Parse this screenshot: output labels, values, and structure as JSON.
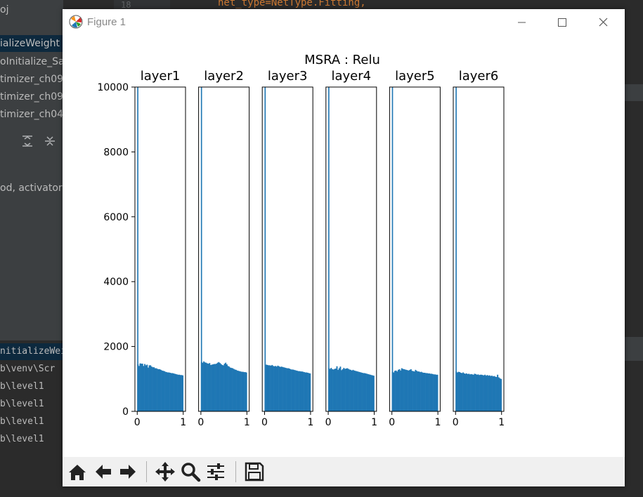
{
  "ide": {
    "code_line_number": "18",
    "code_snippet": "net_type=NetType.Fitting,",
    "left_lines": [
      {
        "text": "oj",
        "sel": false,
        "mono": false
      },
      {
        "text": "ializeWeight",
        "sel": true,
        "mono": false
      },
      {
        "text": "oInitialize_Sa",
        "sel": false,
        "mono": false
      },
      {
        "text": "timizer_ch09",
        "sel": false,
        "mono": false
      },
      {
        "text": "timizer_ch09",
        "sel": false,
        "mono": false
      },
      {
        "text": "timizer_ch04",
        "sel": false,
        "mono": false
      },
      {
        "text": "od, activator",
        "sel": false,
        "mono": false
      }
    ],
    "console_lines": [
      "nitializeWeig",
      "b\\venv\\Scr",
      "b\\level1",
      "b\\level1",
      "b\\level1",
      "b\\level1"
    ]
  },
  "window": {
    "title": "Figure 1",
    "minimize_icon": "minimize-icon",
    "maximize_icon": "maximize-icon",
    "close_icon": "close-icon"
  },
  "toolbar": {
    "buttons": [
      "home-icon",
      "back-arrow-icon",
      "forward-arrow-icon",
      "pan-icon",
      "zoom-icon",
      "configure-subplots-icon",
      "save-icon"
    ]
  },
  "chart_data": {
    "type": "bar",
    "suptitle": "MSRA : Relu",
    "ylim": [
      0,
      10000
    ],
    "yticks": [
      0,
      2000,
      4000,
      6000,
      8000,
      10000
    ],
    "xlim": [
      -0.05,
      1.05
    ],
    "xticks": [
      0,
      1
    ],
    "bar_color": "#1f77b4",
    "bins": 40,
    "subplots": [
      {
        "title": "layer1",
        "zero_bin": 10000,
        "values": [
          1450,
          1400,
          1480,
          1470,
          1470,
          1400,
          1460,
          1420,
          1440,
          1350,
          1420,
          1420,
          1380,
          1360,
          1360,
          1330,
          1330,
          1310,
          1300,
          1300,
          1280,
          1260,
          1250,
          1240,
          1220,
          1210,
          1200,
          1200,
          1190,
          1180,
          1180,
          1170,
          1160,
          1150,
          1140,
          1130,
          1130,
          1120,
          1120,
          1110
        ]
      },
      {
        "title": "layer2",
        "zero_bin": 10000,
        "values": [
          1520,
          1500,
          1540,
          1510,
          1500,
          1480,
          1470,
          1490,
          1430,
          1440,
          1450,
          1460,
          1460,
          1470,
          1500,
          1520,
          1490,
          1460,
          1430,
          1420,
          1470,
          1500,
          1450,
          1400,
          1380,
          1350,
          1340,
          1330,
          1310,
          1290,
          1280,
          1260,
          1250,
          1240,
          1230,
          1220,
          1220,
          1210,
          1210,
          1200
        ]
      },
      {
        "title": "layer3",
        "zero_bin": 10000,
        "values": [
          1440,
          1440,
          1430,
          1420,
          1420,
          1410,
          1430,
          1400,
          1390,
          1400,
          1380,
          1410,
          1390,
          1370,
          1380,
          1370,
          1360,
          1350,
          1340,
          1330,
          1330,
          1320,
          1300,
          1290,
          1290,
          1280,
          1270,
          1260,
          1250,
          1240,
          1240,
          1230,
          1230,
          1220,
          1210,
          1200,
          1200,
          1190,
          1180,
          1170
        ]
      },
      {
        "title": "layer4",
        "zero_bin": 10000,
        "values": [
          1330,
          1310,
          1340,
          1300,
          1290,
          1310,
          1320,
          1390,
          1280,
          1330,
          1380,
          1270,
          1300,
          1340,
          1310,
          1320,
          1330,
          1310,
          1290,
          1280,
          1260,
          1280,
          1260,
          1250,
          1240,
          1230,
          1220,
          1210,
          1200,
          1190,
          1180,
          1180,
          1170,
          1160,
          1150,
          1140,
          1130,
          1120,
          1110,
          1100
        ]
      },
      {
        "title": "layer5",
        "zero_bin": 10000,
        "values": [
          1220,
          1200,
          1250,
          1260,
          1230,
          1280,
          1300,
          1260,
          1330,
          1310,
          1300,
          1290,
          1280,
          1270,
          1260,
          1280,
          1300,
          1250,
          1240,
          1230,
          1280,
          1250,
          1230,
          1230,
          1210,
          1220,
          1200,
          1190,
          1190,
          1180,
          1180,
          1170,
          1170,
          1160,
          1160,
          1150,
          1140,
          1140,
          1130,
          1130
        ]
      },
      {
        "title": "layer6",
        "zero_bin": 10000,
        "values": [
          1230,
          1200,
          1220,
          1210,
          1190,
          1180,
          1200,
          1170,
          1160,
          1170,
          1150,
          1160,
          1140,
          1150,
          1140,
          1130,
          1160,
          1150,
          1130,
          1140,
          1120,
          1130,
          1130,
          1120,
          1110,
          1130,
          1100,
          1120,
          1100,
          1110,
          1090,
          1100,
          1080,
          1090,
          1070,
          1060,
          1130,
          1050,
          1020,
          1000
        ]
      }
    ]
  }
}
